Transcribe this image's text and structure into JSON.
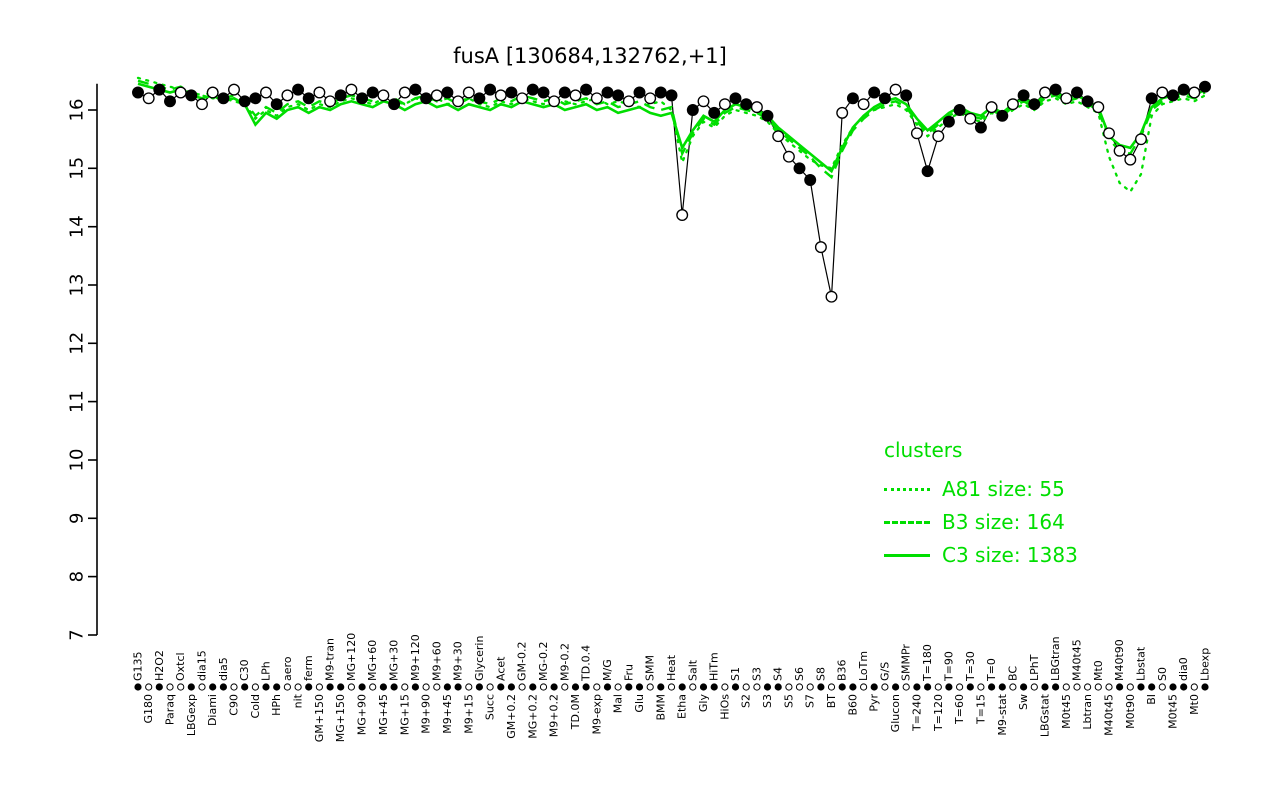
{
  "title": "fusA [130684,132762,+1]",
  "colors": {
    "cluster_green": "#00DE00",
    "series_black": "#000000",
    "background": "#ffffff"
  },
  "legend": {
    "header": "clusters",
    "items": [
      {
        "label": "A81 size: 55",
        "style": "dotted"
      },
      {
        "label": "B3 size: 164",
        "style": "dashed"
      },
      {
        "label": "C3 size: 1383",
        "style": "solid"
      }
    ]
  },
  "y_axis": {
    "ticks": [
      7,
      8,
      9,
      10,
      11,
      12,
      13,
      14,
      15,
      16
    ],
    "min": 7,
    "max": 16.6
  },
  "chart_data": {
    "type": "line",
    "title": "fusA [130684,132762,+1]",
    "xlabel": "",
    "ylabel": "",
    "ylim": [
      7,
      16.6
    ],
    "grid": false,
    "legend_position": "right-middle",
    "categories": [
      "G135",
      "G180",
      "H2O2",
      "Paraq",
      "Oxtcl",
      "LBGexp",
      "dia15",
      "Diami",
      "dia5",
      "C90",
      "C30",
      "Cold",
      "LPh",
      "HPh",
      "aero",
      "nit",
      "ferm",
      "GM+150",
      "M9-tran",
      "MG+150",
      "MG+120",
      "MG+90",
      "MG+60",
      "MG+45",
      "MG+30",
      "MG+15",
      "M9+120",
      "M9+90",
      "M9+60",
      "M9+45",
      "M9+30",
      "M9+15",
      "Glycerin",
      "Succ",
      "Acet",
      "GM+0.2",
      "GM-0.2",
      "MG+0.2",
      "MG-0.2",
      "M9+0.2",
      "M9-0.2",
      "TD.0M",
      "TD.0.4",
      "M9-exp",
      "M/G",
      "Mal",
      "Fru",
      "Glu",
      "SMM",
      "BMM",
      "Heat",
      "Etha",
      "Salt",
      "Gly",
      "HiTm",
      "HiOs",
      "S1",
      "S2",
      "S3",
      "S3",
      "S4",
      "S5",
      "S6",
      "S7",
      "S8",
      "BT",
      "B36",
      "B60",
      "LoTm",
      "Pyr",
      "G/S",
      "Glucon",
      "SMMPr",
      "T=240",
      "T=180",
      "T=120",
      "T=90",
      "T=60",
      "T=30",
      "T=15",
      "T=0",
      "M9-stat",
      "BC",
      "Sw",
      "LPhT",
      "LBGstat",
      "LBGtran",
      "M0t45",
      "M40t45",
      "Lbtran",
      "Mt0",
      "M40t45",
      "M40t90",
      "M0t90",
      "Lbstat",
      "BI",
      "S0",
      "M0t45",
      "dia0",
      "Mt0",
      "Lbexp"
    ],
    "series": [
      {
        "name": "fusA",
        "style": "solid-with-markers",
        "color": "#000000",
        "values": [
          16.3,
          16.2,
          16.35,
          16.15,
          16.3,
          16.25,
          16.1,
          16.3,
          16.2,
          16.35,
          16.15,
          16.2,
          16.3,
          16.1,
          16.25,
          16.35,
          16.2,
          16.3,
          16.15,
          16.25,
          16.35,
          16.2,
          16.3,
          16.25,
          16.1,
          16.3,
          16.35,
          16.2,
          16.25,
          16.3,
          16.15,
          16.3,
          16.2,
          16.35,
          16.25,
          16.3,
          16.2,
          16.35,
          16.3,
          16.15,
          16.3,
          16.25,
          16.35,
          16.2,
          16.3,
          16.25,
          16.15,
          16.3,
          16.2,
          16.3,
          16.25,
          14.2,
          16.0,
          16.15,
          15.95,
          16.1,
          16.2,
          16.1,
          16.05,
          15.9,
          15.55,
          15.2,
          15.0,
          14.8,
          13.65,
          12.8,
          15.95,
          16.2,
          16.1,
          16.3,
          16.2,
          16.35,
          16.25,
          15.6,
          14.95,
          15.55,
          15.8,
          16.0,
          15.85,
          15.7,
          16.05,
          15.9,
          16.1,
          16.25,
          16.1,
          16.3,
          16.35,
          16.2,
          16.3,
          16.15,
          16.05,
          15.6,
          15.3,
          15.15,
          15.5,
          16.2,
          16.3,
          16.25,
          16.35,
          16.3,
          16.4
        ]
      },
      {
        "name": "A81",
        "style": "dotted",
        "color": "#00DE00",
        "values": [
          16.55,
          16.5,
          16.45,
          16.4,
          16.35,
          16.3,
          16.25,
          16.2,
          16.2,
          16.15,
          16.1,
          15.85,
          16.0,
          15.9,
          16.05,
          16.1,
          16.0,
          16.1,
          16.05,
          16.15,
          16.2,
          16.15,
          16.1,
          16.2,
          16.15,
          16.1,
          16.2,
          16.15,
          16.2,
          16.1,
          16.15,
          16.2,
          16.1,
          16.05,
          16.15,
          16.1,
          16.2,
          16.15,
          16.1,
          16.2,
          16.15,
          16.1,
          16.15,
          16.2,
          16.1,
          16.15,
          16.1,
          16.05,
          16.1,
          16.15,
          16.0,
          15.1,
          15.55,
          15.8,
          15.7,
          15.9,
          16.0,
          15.95,
          15.9,
          15.8,
          15.6,
          15.45,
          15.3,
          15.15,
          15.05,
          15.0,
          15.4,
          15.7,
          15.9,
          16.0,
          16.05,
          16.1,
          16.0,
          15.75,
          15.55,
          15.7,
          15.85,
          15.95,
          15.85,
          15.8,
          15.95,
          15.85,
          16.0,
          16.1,
          16.0,
          16.15,
          16.2,
          16.1,
          16.15,
          16.05,
          15.95,
          15.2,
          14.75,
          14.6,
          14.9,
          15.9,
          16.1,
          16.15,
          16.2,
          16.15,
          16.25
        ]
      },
      {
        "name": "B3",
        "style": "dashed",
        "color": "#00DE00",
        "values": [
          16.5,
          16.45,
          16.4,
          16.35,
          16.4,
          16.3,
          16.25,
          16.3,
          16.2,
          16.25,
          16.15,
          15.9,
          16.05,
          15.95,
          16.1,
          16.15,
          16.05,
          16.15,
          16.1,
          16.2,
          16.25,
          16.2,
          16.15,
          16.25,
          16.2,
          16.1,
          16.2,
          16.25,
          16.15,
          16.2,
          16.1,
          16.2,
          16.15,
          16.1,
          16.2,
          16.15,
          16.25,
          16.2,
          16.15,
          16.2,
          16.1,
          16.15,
          16.2,
          16.1,
          16.15,
          16.05,
          16.1,
          16.15,
          16.05,
          16.0,
          16.05,
          15.25,
          15.6,
          15.85,
          15.75,
          15.95,
          16.05,
          16.0,
          15.95,
          15.85,
          15.65,
          15.5,
          15.35,
          15.2,
          15.0,
          14.85,
          15.3,
          15.65,
          15.85,
          16.0,
          16.1,
          16.15,
          16.05,
          15.8,
          15.6,
          15.75,
          15.9,
          16.0,
          15.9,
          15.85,
          16.0,
          15.9,
          16.05,
          16.15,
          16.05,
          16.2,
          16.25,
          16.15,
          16.2,
          16.1,
          16.0,
          15.5,
          15.3,
          15.25,
          15.55,
          16.0,
          16.15,
          16.2,
          16.25,
          16.2,
          16.3
        ]
      },
      {
        "name": "C3",
        "style": "solid",
        "color": "#00DE00",
        "values": [
          16.45,
          16.4,
          16.35,
          16.3,
          16.35,
          16.25,
          16.2,
          16.25,
          16.15,
          16.2,
          16.1,
          15.75,
          15.95,
          15.85,
          16.0,
          16.05,
          15.95,
          16.05,
          16.0,
          16.1,
          16.15,
          16.1,
          16.05,
          16.15,
          16.1,
          16.0,
          16.1,
          16.15,
          16.05,
          16.1,
          16.0,
          16.1,
          16.05,
          16.0,
          16.1,
          16.05,
          16.15,
          16.1,
          16.05,
          16.1,
          16.0,
          16.05,
          16.1,
          16.0,
          16.05,
          15.95,
          16.0,
          16.05,
          15.95,
          15.9,
          15.95,
          15.35,
          15.65,
          15.9,
          15.8,
          16.0,
          16.1,
          16.05,
          16.0,
          15.9,
          15.7,
          15.55,
          15.4,
          15.25,
          15.1,
          14.95,
          15.35,
          15.7,
          15.9,
          16.05,
          16.15,
          16.2,
          16.1,
          15.85,
          15.65,
          15.8,
          15.95,
          16.05,
          15.95,
          15.9,
          16.05,
          15.95,
          16.1,
          16.2,
          16.1,
          16.25,
          16.3,
          16.2,
          16.25,
          16.15,
          16.05,
          15.55,
          15.4,
          15.35,
          15.6,
          16.05,
          16.2,
          16.25,
          16.3,
          16.25,
          16.35
        ]
      }
    ],
    "marker_filled": [
      1,
      0,
      1,
      1,
      0,
      1,
      0,
      0,
      1,
      0,
      1,
      1,
      0,
      1,
      0,
      1,
      1,
      0,
      0,
      1,
      0,
      1,
      1,
      0,
      1,
      0,
      1,
      1,
      0,
      1,
      0,
      0,
      1,
      1,
      0,
      1,
      0,
      1,
      1,
      0,
      1,
      0,
      1,
      0,
      1,
      1,
      0,
      1,
      0,
      1,
      1,
      0,
      1,
      0,
      1,
      0,
      1,
      1,
      0,
      1,
      0,
      0,
      1,
      1,
      0,
      0,
      0,
      1,
      0,
      1,
      1,
      0,
      1,
      0,
      1,
      0,
      1,
      1,
      0,
      1,
      0,
      1,
      0,
      1,
      1,
      0,
      1,
      0,
      1,
      1,
      0,
      0,
      0,
      0,
      0,
      1,
      0,
      1,
      1,
      0,
      1
    ]
  }
}
